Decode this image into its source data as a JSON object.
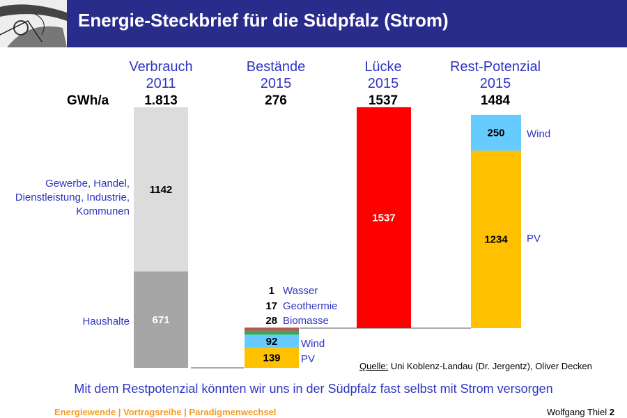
{
  "header": {
    "title": "Energie-Steckbrief für die Südpfalz (Strom)"
  },
  "unit": "GWh/a",
  "columns": [
    {
      "label": "Verbrauch",
      "year": "2011",
      "total": "1.813"
    },
    {
      "label": "Bestände",
      "year": "2015",
      "total": "276"
    },
    {
      "label": "Lücke",
      "year": "2015",
      "total": "1537"
    },
    {
      "label": "Rest-Potenzial",
      "year": "2015",
      "total": "1484"
    }
  ],
  "chart_data": {
    "type": "bar",
    "categories": [
      "Verbrauch 2011",
      "Bestände 2015",
      "Lücke 2015",
      "Rest-Potenzial 2015"
    ],
    "unit": "GWh/a",
    "stacks": [
      {
        "category": "Verbrauch 2011",
        "segments": [
          {
            "name": "Haushalte",
            "value": 671,
            "color": "#a6a6a6"
          },
          {
            "name": "Gewerbe, Handel, Dienstleistung, Industrie, Kommunen",
            "value": 1142,
            "color": "#dcdcdc"
          }
        ]
      },
      {
        "category": "Bestände 2015",
        "segments": [
          {
            "name": "PV",
            "value": 139,
            "color": "#ffc000"
          },
          {
            "name": "Wind",
            "value": 92,
            "color": "#66ccff"
          },
          {
            "name": "Biomasse",
            "value": 28,
            "color": "#3aa655"
          },
          {
            "name": "Geothermie",
            "value": 17,
            "color": "#c0504d"
          },
          {
            "name": "Wasser",
            "value": 1,
            "color": "#1f3d7a"
          }
        ]
      },
      {
        "category": "Lücke 2015",
        "segments": [
          {
            "name": "",
            "value": 1537,
            "color": "#ff0000"
          }
        ]
      },
      {
        "category": "Rest-Potenzial 2015",
        "segments": [
          {
            "name": "PV",
            "value": 1234,
            "color": "#ffc000"
          },
          {
            "name": "Wind",
            "value": 250,
            "color": "#66ccff"
          }
        ]
      }
    ]
  },
  "labels": {
    "gewerbe": [
      "Gewerbe, Handel,",
      "Dienstleistung, Industrie,",
      "Kommunen"
    ],
    "haushalte": "Haushalte",
    "bestaende_small": [
      {
        "value": "1",
        "name": "Wasser"
      },
      {
        "value": "17",
        "name": "Geothermie"
      },
      {
        "value": "28",
        "name": "Biomasse"
      }
    ],
    "wind": "Wind",
    "pv": "PV"
  },
  "source": {
    "label": "Quelle:",
    "text": " Uni Koblenz-Landau (Dr. Jergentz), Oliver Decken"
  },
  "summary": "Mit dem Restpotenzial könnten wir uns in der Südpfalz fast selbst mit Strom versorgen",
  "footer": {
    "left": "Energiewende | Vortragsreihe | Paradigmenwechsel",
    "author": "Wolfgang Thiel",
    "page": "2"
  }
}
